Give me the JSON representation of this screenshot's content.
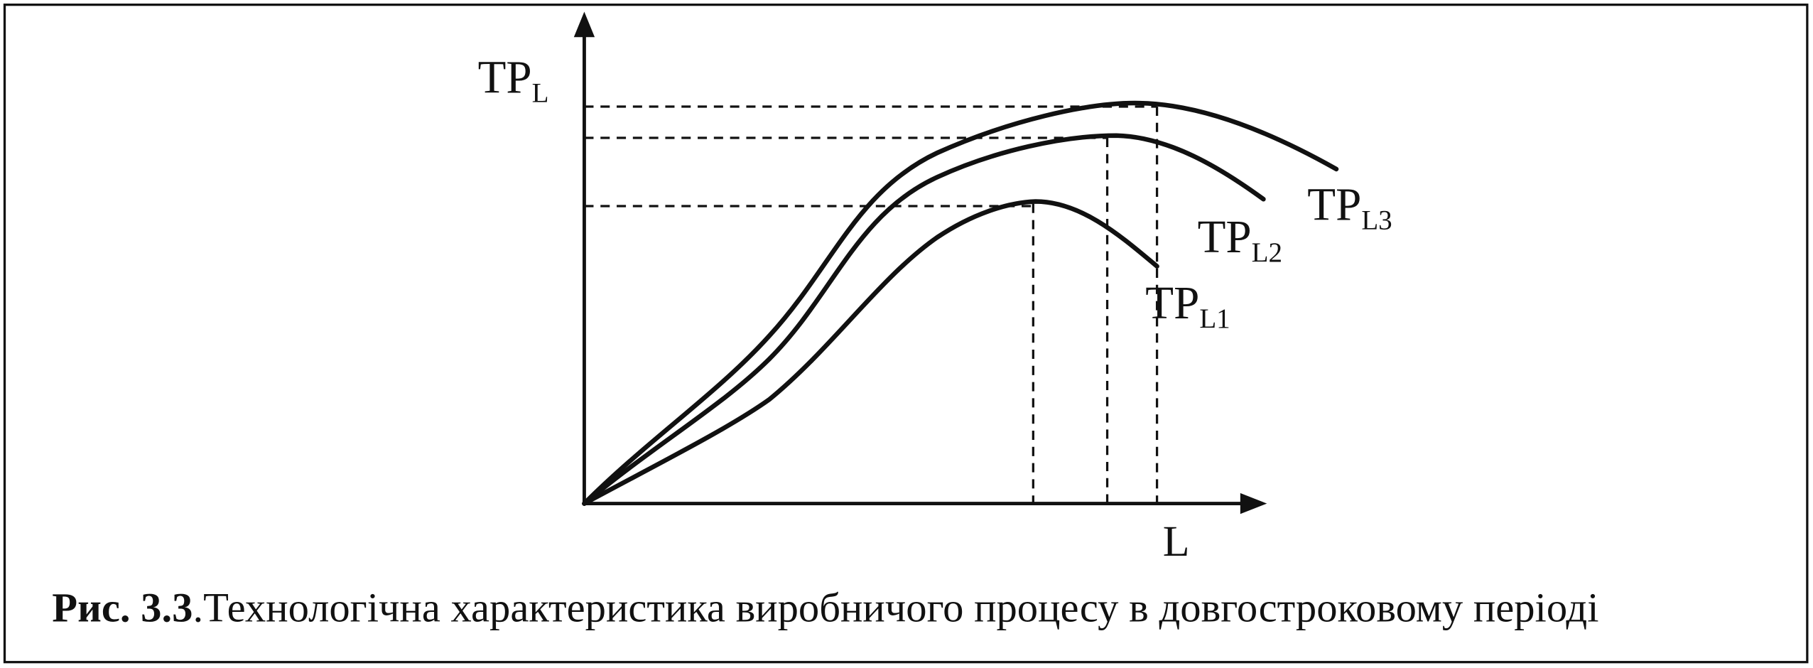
{
  "axes": {
    "y_label": {
      "main": "TP",
      "sub": "L"
    },
    "x_label": "L"
  },
  "curves": [
    {
      "label": {
        "main": "TP",
        "sub": "L1"
      }
    },
    {
      "label": {
        "main": "TP",
        "sub": "L2"
      }
    },
    {
      "label": {
        "main": "TP",
        "sub": "L3"
      }
    }
  ],
  "caption": {
    "number": "Рис. 3.3",
    "text": ".Технологічна характеристика виробничого процесу в довгостроковому періоді"
  }
}
